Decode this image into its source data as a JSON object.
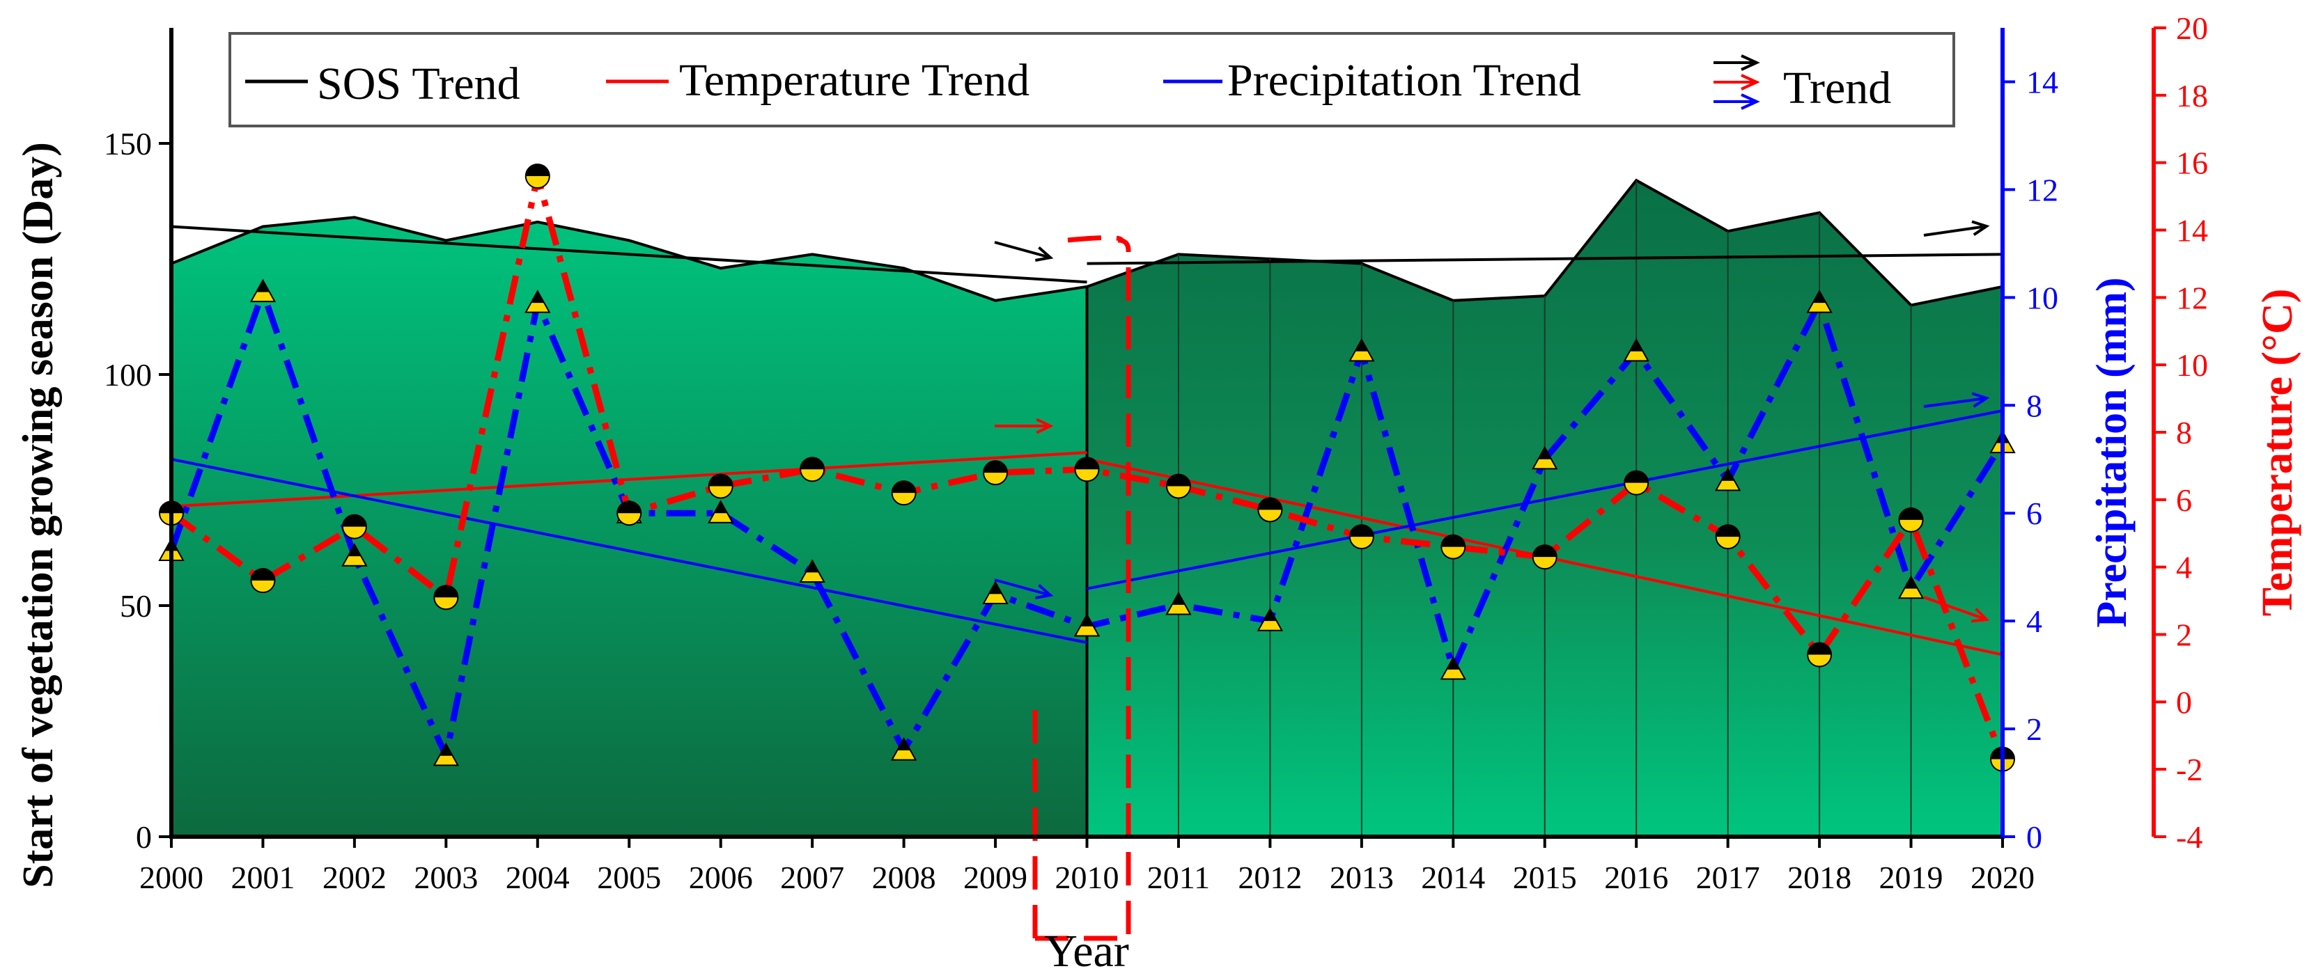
{
  "chart_data": {
    "type": "line",
    "x": [
      2000,
      2001,
      2002,
      2003,
      2004,
      2005,
      2006,
      2007,
      2008,
      2009,
      2010,
      2011,
      2012,
      2013,
      2014,
      2015,
      2016,
      2017,
      2018,
      2019,
      2020
    ],
    "xlabel": "Year",
    "ylabel_left": "Start of vegetation growing season (Day)",
    "ylabel_precip": "Precipitation (mm)",
    "ylabel_temp": "Temperature (°C)",
    "ylim_left": [
      0,
      175
    ],
    "yticks_left": [
      0,
      50,
      100,
      150
    ],
    "ylim_precip": [
      0,
      15
    ],
    "yticks_precip": [
      0,
      2,
      4,
      6,
      8,
      10,
      12,
      14
    ],
    "ylim_temp": [
      -4,
      20
    ],
    "yticks_temp": [
      -4,
      -2,
      0,
      2,
      4,
      6,
      8,
      10,
      12,
      14,
      16,
      18,
      20
    ],
    "series": [
      {
        "name": "SOS",
        "axis": "left",
        "values": [
          124,
          132,
          134,
          129,
          133,
          129,
          123,
          126,
          123,
          116,
          119,
          126,
          125,
          124,
          116,
          117,
          142,
          131,
          135,
          115,
          119
        ]
      },
      {
        "name": "Precipitation",
        "axis": "precip",
        "values": [
          5.3,
          10.1,
          5.2,
          1.5,
          9.9,
          6.0,
          6.0,
          4.9,
          1.6,
          4.5,
          3.9,
          4.3,
          4.0,
          9.0,
          3.1,
          7.0,
          9.0,
          6.6,
          9.9,
          4.6,
          7.3
        ]
      },
      {
        "name": "Temperature",
        "axis": "temp",
        "values": [
          5.6,
          3.6,
          5.2,
          3.1,
          15.6,
          5.6,
          6.4,
          6.9,
          6.2,
          6.8,
          6.9,
          6.4,
          5.7,
          4.9,
          4.6,
          4.3,
          6.5,
          4.9,
          1.4,
          5.4,
          -1.7
        ]
      }
    ],
    "trends": [
      {
        "name": "SOS Trend",
        "axis": "left",
        "segments": [
          {
            "x": [
              2000,
              2010
            ],
            "y": [
              132,
              120
            ]
          },
          {
            "x": [
              2010,
              2020
            ],
            "y": [
              124,
              126
            ]
          }
        ]
      },
      {
        "name": "Temperature Trend",
        "axis": "temp",
        "segments": [
          {
            "x": [
              2000,
              2010
            ],
            "y": [
              5.8,
              7.4
            ]
          },
          {
            "x": [
              2010,
              2020
            ],
            "y": [
              7.2,
              1.4
            ]
          }
        ]
      },
      {
        "name": "Precipitation Trend",
        "axis": "precip",
        "segments": [
          {
            "x": [
              2000,
              2010
            ],
            "y": [
              7.0,
              3.6
            ]
          },
          {
            "x": [
              2010,
              2020
            ],
            "y": [
              4.6,
              7.9
            ]
          }
        ]
      }
    ],
    "legend": {
      "items": [
        "SOS Trend",
        "Temperature Trend",
        "Precipitation Trend",
        "Trend"
      ],
      "position": "top"
    },
    "colors": {
      "sos": "#000000",
      "temperature": "#ff0000",
      "precipitation": "#0000ff",
      "area_dark": "#0a6d3e",
      "area_light": "#00c87f",
      "marker_yellow": "#ffd700"
    }
  }
}
